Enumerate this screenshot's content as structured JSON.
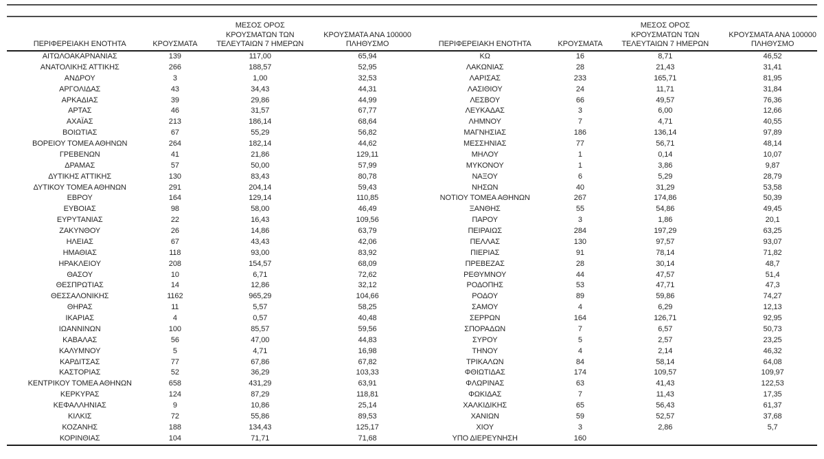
{
  "headers": {
    "region": "ΠΕΡΙΦΕΡΕΙΑΚΗ ΕΝΟΤΗΤΑ",
    "cases": "ΚΡΟΥΣΜΑΤΑ",
    "avg7": "ΜΕΣΟΣ ΟΡΟΣ\nΚΡΟΥΣΜΑΤΩΝ ΤΩΝ\nΤΕΛΕΥΤΑΙΩΝ 7 ΗΜΕΡΩΝ",
    "per100k": "ΚΡΟΥΣΜΑΤΑ ΑΝΑ 100000\nΠΛΗΘΥΣΜΟ"
  },
  "colors": {
    "text": "#262626",
    "rule_gray": "#4d4d4d",
    "rule_black": "#1c1c1c",
    "background": "#ffffff"
  },
  "left_table": {
    "rows": [
      [
        "ΑΙΤΩΛΟΑΚΑΡΝΑΝΙΑΣ",
        "139",
        "117,00",
        "65,94"
      ],
      [
        "ΑΝΑΤΟΛΙΚΗΣ ΑΤΤΙΚΗΣ",
        "266",
        "188,57",
        "52,95"
      ],
      [
        "ΑΝΔΡΟΥ",
        "3",
        "1,00",
        "32,53"
      ],
      [
        "ΑΡΓΟΛΙΔΑΣ",
        "43",
        "34,43",
        "44,31"
      ],
      [
        "ΑΡΚΑΔΙΑΣ",
        "39",
        "29,86",
        "44,99"
      ],
      [
        "ΑΡΤΑΣ",
        "46",
        "31,57",
        "67,77"
      ],
      [
        "ΑΧΑΪΑΣ",
        "213",
        "186,14",
        "68,64"
      ],
      [
        "ΒΟΙΩΤΙΑΣ",
        "67",
        "55,29",
        "56,82"
      ],
      [
        "ΒΟΡΕΙΟΥ ΤΟΜΕΑ ΑΘΗΝΩΝ",
        "264",
        "182,14",
        "44,62"
      ],
      [
        "ΓΡΕΒΕΝΩΝ",
        "41",
        "21,86",
        "129,11"
      ],
      [
        "ΔΡΑΜΑΣ",
        "57",
        "50,00",
        "57,99"
      ],
      [
        "ΔΥΤΙΚΗΣ ΑΤΤΙΚΗΣ",
        "130",
        "83,43",
        "80,78"
      ],
      [
        "ΔΥΤΙΚΟΥ ΤΟΜΕΑ ΑΘΗΝΩΝ",
        "291",
        "204,14",
        "59,43"
      ],
      [
        "ΕΒΡΟΥ",
        "164",
        "129,14",
        "110,85"
      ],
      [
        "ΕΥΒΟΙΑΣ",
        "98",
        "58,00",
        "46,49"
      ],
      [
        "ΕΥΡΥΤΑΝΙΑΣ",
        "22",
        "16,43",
        "109,56"
      ],
      [
        "ΖΑΚΥΝΘΟΥ",
        "26",
        "14,86",
        "63,79"
      ],
      [
        "ΗΛΕΙΑΣ",
        "67",
        "43,43",
        "42,06"
      ],
      [
        "ΗΜΑΘΙΑΣ",
        "118",
        "93,00",
        "83,92"
      ],
      [
        "ΗΡΑΚΛΕΙΟΥ",
        "208",
        "154,57",
        "68,09"
      ],
      [
        "ΘΑΣΟΥ",
        "10",
        "6,71",
        "72,62"
      ],
      [
        "ΘΕΣΠΡΩΤΙΑΣ",
        "14",
        "12,86",
        "32,12"
      ],
      [
        "ΘΕΣΣΑΛΟΝΙΚΗΣ",
        "1162",
        "965,29",
        "104,66"
      ],
      [
        "ΘΗΡΑΣ",
        "11",
        "5,57",
        "58,25"
      ],
      [
        "ΙΚΑΡΙΑΣ",
        "4",
        "0,57",
        "40,48"
      ],
      [
        "ΙΩΑΝΝΙΝΩΝ",
        "100",
        "85,57",
        "59,56"
      ],
      [
        "ΚΑΒΑΛΑΣ",
        "56",
        "47,00",
        "44,83"
      ],
      [
        "ΚΑΛΥΜΝΟΥ",
        "5",
        "4,71",
        "16,98"
      ],
      [
        "ΚΑΡΔΙΤΣΑΣ",
        "77",
        "67,86",
        "67,82"
      ],
      [
        "ΚΑΣΤΟΡΙΑΣ",
        "52",
        "36,29",
        "103,33"
      ],
      [
        "ΚΕΝΤΡΙΚΟΥ ΤΟΜΕΑ ΑΘΗΝΩΝ",
        "658",
        "431,29",
        "63,91"
      ],
      [
        "ΚΕΡΚΥΡΑΣ",
        "124",
        "87,29",
        "118,81"
      ],
      [
        "ΚΕΦΑΛΛΗΝΙΑΣ",
        "9",
        "10,86",
        "25,14"
      ],
      [
        "ΚΙΛΚΙΣ",
        "72",
        "55,86",
        "89,53"
      ],
      [
        "ΚΟΖΑΝΗΣ",
        "188",
        "134,43",
        "125,17"
      ],
      [
        "ΚΟΡΙΝΘΙΑΣ",
        "104",
        "71,71",
        "71,68"
      ]
    ]
  },
  "right_table": {
    "rows": [
      [
        "ΚΩ",
        "16",
        "8,71",
        "46,52"
      ],
      [
        "ΛΑΚΩΝΙΑΣ",
        "28",
        "21,43",
        "31,41"
      ],
      [
        "ΛΑΡΙΣΑΣ",
        "233",
        "165,71",
        "81,95"
      ],
      [
        "ΛΑΣΙΘΙΟΥ",
        "24",
        "11,71",
        "31,84"
      ],
      [
        "ΛΕΣΒΟΥ",
        "66",
        "49,57",
        "76,36"
      ],
      [
        "ΛΕΥΚΑΔΑΣ",
        "3",
        "6,00",
        "12,66"
      ],
      [
        "ΛΗΜΝΟΥ",
        "7",
        "4,71",
        "40,55"
      ],
      [
        "ΜΑΓΝΗΣΙΑΣ",
        "186",
        "136,14",
        "97,89"
      ],
      [
        "ΜΕΣΣΗΝΙΑΣ",
        "77",
        "56,71",
        "48,14"
      ],
      [
        "ΜΗΛΟΥ",
        "1",
        "0,14",
        "10,07"
      ],
      [
        "ΜΥΚΟΝΟΥ",
        "1",
        "3,86",
        "9,87"
      ],
      [
        "ΝΑΞΟΥ",
        "6",
        "5,29",
        "28,79"
      ],
      [
        "ΝΗΣΩΝ",
        "40",
        "31,29",
        "53,58"
      ],
      [
        "ΝΟΤΙΟΥ ΤΟΜΕΑ ΑΘΗΝΩΝ",
        "267",
        "174,86",
        "50,39"
      ],
      [
        "ΞΑΝΘΗΣ",
        "55",
        "54,86",
        "49,45"
      ],
      [
        "ΠΑΡΟΥ",
        "3",
        "1,86",
        "20,1"
      ],
      [
        "ΠΕΙΡΑΙΩΣ",
        "284",
        "197,29",
        "63,25"
      ],
      [
        "ΠΕΛΛΑΣ",
        "130",
        "97,57",
        "93,07"
      ],
      [
        "ΠΙΕΡΙΑΣ",
        "91",
        "78,14",
        "71,82"
      ],
      [
        "ΠΡΕΒΕΖΑΣ",
        "28",
        "30,14",
        "48,7"
      ],
      [
        "ΡΕΘΥΜΝΟΥ",
        "44",
        "47,57",
        "51,4"
      ],
      [
        "ΡΟΔΟΠΗΣ",
        "53",
        "47,71",
        "47,3"
      ],
      [
        "ΡΟΔΟΥ",
        "89",
        "59,86",
        "74,27"
      ],
      [
        "ΣΑΜΟΥ",
        "4",
        "6,29",
        "12,13"
      ],
      [
        "ΣΕΡΡΩΝ",
        "164",
        "126,71",
        "92,95"
      ],
      [
        "ΣΠΟΡΑΔΩΝ",
        "7",
        "6,57",
        "50,73"
      ],
      [
        "ΣΥΡΟΥ",
        "5",
        "2,57",
        "23,25"
      ],
      [
        "ΤΗΝΟΥ",
        "4",
        "2,14",
        "46,32"
      ],
      [
        "ΤΡΙΚΑΛΩΝ",
        "84",
        "58,14",
        "64,08"
      ],
      [
        "ΦΘΙΩΤΙΔΑΣ",
        "174",
        "109,57",
        "109,97"
      ],
      [
        "ΦΛΩΡΙΝΑΣ",
        "63",
        "41,43",
        "122,53"
      ],
      [
        "ΦΩΚΙΔΑΣ",
        "7",
        "11,43",
        "17,35"
      ],
      [
        "ΧΑΛΚΙΔΙΚΗΣ",
        "65",
        "56,43",
        "61,37"
      ],
      [
        "ΧΑΝΙΩΝ",
        "59",
        "52,57",
        "37,68"
      ],
      [
        "ΧΙΟΥ",
        "3",
        "2,86",
        "5,7"
      ],
      [
        "ΥΠΟ ΔΙΕΡΕΥΝΗΣΗ",
        "160",
        "",
        ""
      ]
    ]
  }
}
